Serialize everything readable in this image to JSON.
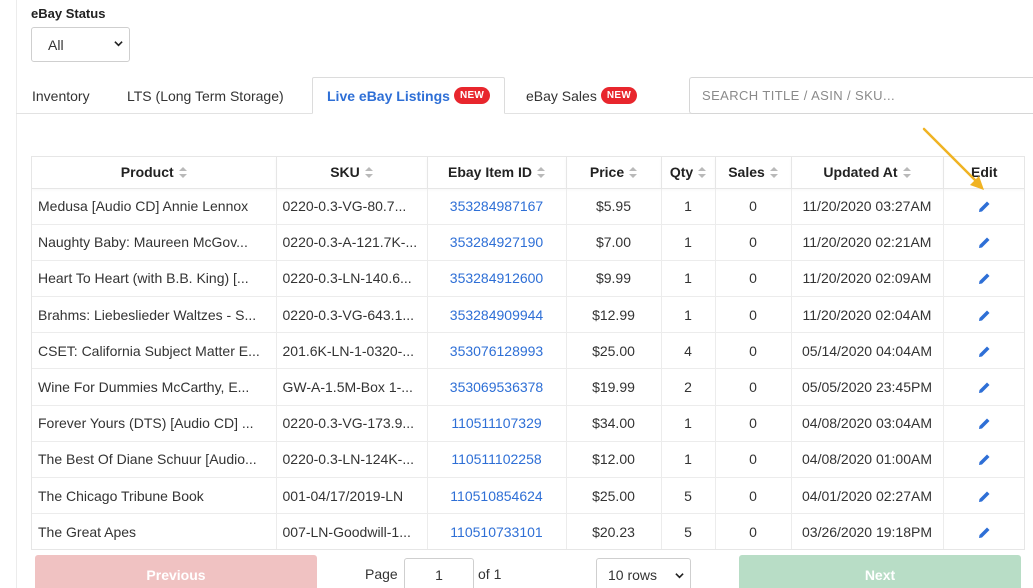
{
  "filter": {
    "label": "eBay Status",
    "selected": "All"
  },
  "tabs": [
    {
      "label": "Inventory",
      "badge": ""
    },
    {
      "label": "LTS (Long Term Storage)",
      "badge": ""
    },
    {
      "label": "Live eBay Listings",
      "badge": "NEW"
    },
    {
      "label": "eBay Sales",
      "badge": "NEW"
    }
  ],
  "search": {
    "placeholder": "SEARCH TITLE / ASIN / SKU..."
  },
  "table": {
    "headers": [
      "Product",
      "SKU",
      "Ebay Item ID",
      "Price",
      "Qty",
      "Sales",
      "Updated At",
      "Edit"
    ],
    "rows": [
      {
        "product": "Medusa [Audio CD] Annie Lennox",
        "sku": "0220-0.3-VG-80.7...",
        "item_id": "353284987167",
        "price": "$5.95",
        "qty": "1",
        "sales": "0",
        "updated": "11/20/2020 03:27AM"
      },
      {
        "product": "Naughty Baby: Maureen McGov...",
        "sku": "0220-0.3-A-121.7K-...",
        "item_id": "353284927190",
        "price": "$7.00",
        "qty": "1",
        "sales": "0",
        "updated": "11/20/2020 02:21AM"
      },
      {
        "product": "Heart To Heart (with B.B. King) [...",
        "sku": "0220-0.3-LN-140.6...",
        "item_id": "353284912600",
        "price": "$9.99",
        "qty": "1",
        "sales": "0",
        "updated": "11/20/2020 02:09AM"
      },
      {
        "product": "Brahms: Liebeslieder Waltzes - S...",
        "sku": "0220-0.3-VG-643.1...",
        "item_id": "353284909944",
        "price": "$12.99",
        "qty": "1",
        "sales": "0",
        "updated": "11/20/2020 02:04AM"
      },
      {
        "product": "CSET: California Subject Matter E...",
        "sku": "201.6K-LN-1-0320-...",
        "item_id": "353076128993",
        "price": "$25.00",
        "qty": "4",
        "sales": "0",
        "updated": "05/14/2020 04:04AM"
      },
      {
        "product": "Wine For Dummies McCarthy, E...",
        "sku": "GW-A-1.5M-Box 1-...",
        "item_id": "353069536378",
        "price": "$19.99",
        "qty": "2",
        "sales": "0",
        "updated": "05/05/2020 23:45PM"
      },
      {
        "product": "Forever Yours (DTS) [Audio CD] ...",
        "sku": "0220-0.3-VG-173.9...",
        "item_id": "110511107329",
        "price": "$34.00",
        "qty": "1",
        "sales": "0",
        "updated": "04/08/2020 03:04AM"
      },
      {
        "product": "The Best Of Diane Schuur [Audio...",
        "sku": "0220-0.3-LN-124K-...",
        "item_id": "110511102258",
        "price": "$12.00",
        "qty": "1",
        "sales": "0",
        "updated": "04/08/2020 01:00AM"
      },
      {
        "product": "The Chicago Tribune Book",
        "sku": "001-04/17/2019-LN",
        "item_id": "110510854624",
        "price": "$25.00",
        "qty": "5",
        "sales": "0",
        "updated": "04/01/2020 02:27AM"
      },
      {
        "product": "The Great Apes",
        "sku": "007-LN-Goodwill-1...",
        "item_id": "110510733101",
        "price": "$20.23",
        "qty": "5",
        "sales": "0",
        "updated": "03/26/2020 19:18PM"
      }
    ]
  },
  "pagination": {
    "previous_label": "Previous",
    "next_label": "Next",
    "page_label": "Page",
    "page_value": "1",
    "of_label": "of 1",
    "rows_selected": "10 rows"
  },
  "colors": {
    "link": "#2e6fd6",
    "badge": "#e8262d",
    "previous_button": "#f0c2c2",
    "next_button": "#b8ddc6",
    "annotation_arrow": "#f0b323"
  },
  "icons": {
    "sort": "sort-icon",
    "edit": "pencil-icon",
    "select": "chevron-down-icon"
  }
}
